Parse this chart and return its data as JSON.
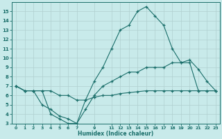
{
  "xlabel": "Humidex (Indice chaleur)",
  "background_color": "#c8eaea",
  "grid_color": "#b0d0d0",
  "line_color": "#1a6e6a",
  "x_values": [
    0,
    1,
    2,
    3,
    4,
    5,
    6,
    7,
    8,
    9,
    10,
    11,
    12,
    13,
    14,
    15,
    16,
    17,
    18,
    19,
    20,
    21,
    22,
    23
  ],
  "line1": [
    7.0,
    6.5,
    6.5,
    6.5,
    4.0,
    3.5,
    3.0,
    3.0,
    5.5,
    7.5,
    9.0,
    11.0,
    13.0,
    13.5,
    15.0,
    15.5,
    14.5,
    13.5,
    11.0,
    9.5,
    9.8,
    8.8,
    7.5,
    6.5
  ],
  "line2": [
    7.0,
    6.5,
    6.5,
    5.0,
    4.5,
    3.8,
    3.5,
    3.0,
    4.5,
    6.0,
    7.0,
    7.5,
    8.0,
    8.5,
    8.5,
    9.0,
    9.0,
    9.0,
    9.5,
    9.5,
    9.5,
    6.5,
    6.5,
    6.5
  ],
  "line3": [
    7.0,
    6.5,
    6.5,
    6.5,
    6.5,
    6.0,
    6.0,
    5.5,
    5.5,
    5.8,
    6.0,
    6.0,
    6.2,
    6.3,
    6.4,
    6.5,
    6.5,
    6.5,
    6.5,
    6.5,
    6.5,
    6.5,
    6.5,
    6.5
  ],
  "ylim": [
    3,
    16
  ],
  "xlim": [
    -0.5,
    23.5
  ],
  "yticks": [
    3,
    4,
    5,
    6,
    7,
    8,
    9,
    10,
    11,
    12,
    13,
    14,
    15
  ],
  "xtick_positions": [
    0,
    1,
    2,
    3,
    4,
    5,
    6,
    7,
    9,
    11,
    12,
    13,
    14,
    15,
    16,
    17,
    18,
    19,
    20,
    21,
    22,
    23
  ],
  "xtick_labels": [
    "0",
    "1",
    "2",
    "3",
    "4",
    "5",
    "6",
    "7",
    "9",
    "11",
    "12",
    "13",
    "14",
    "15",
    "16",
    "17",
    "18",
    "19",
    "20",
    "21",
    "22",
    "23"
  ]
}
